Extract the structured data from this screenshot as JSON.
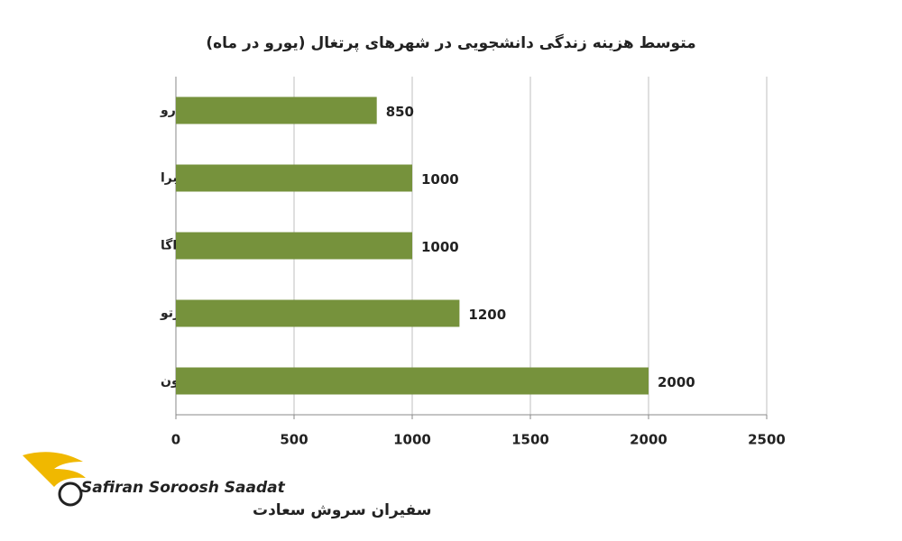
{
  "chart_data": {
    "type": "barh",
    "title": "متوسط هزینه زندگی دانشجویی در شهرهای پرتغال (یورو در ماه)",
    "categories": [
      "فارو",
      "کویمبرا",
      "براگا",
      "پورتو",
      "لیسبون"
    ],
    "values": [
      850,
      1000,
      1000,
      1200,
      2000
    ],
    "color": "#76923c",
    "xlim": [
      0,
      2500
    ],
    "xticks": [
      0,
      500,
      1000,
      1500,
      2000,
      2500
    ],
    "grid": true
  },
  "logo": {
    "name_en": "Safiran Soroosh Saadat",
    "name_fa": "سفیران سروش سعادت"
  }
}
